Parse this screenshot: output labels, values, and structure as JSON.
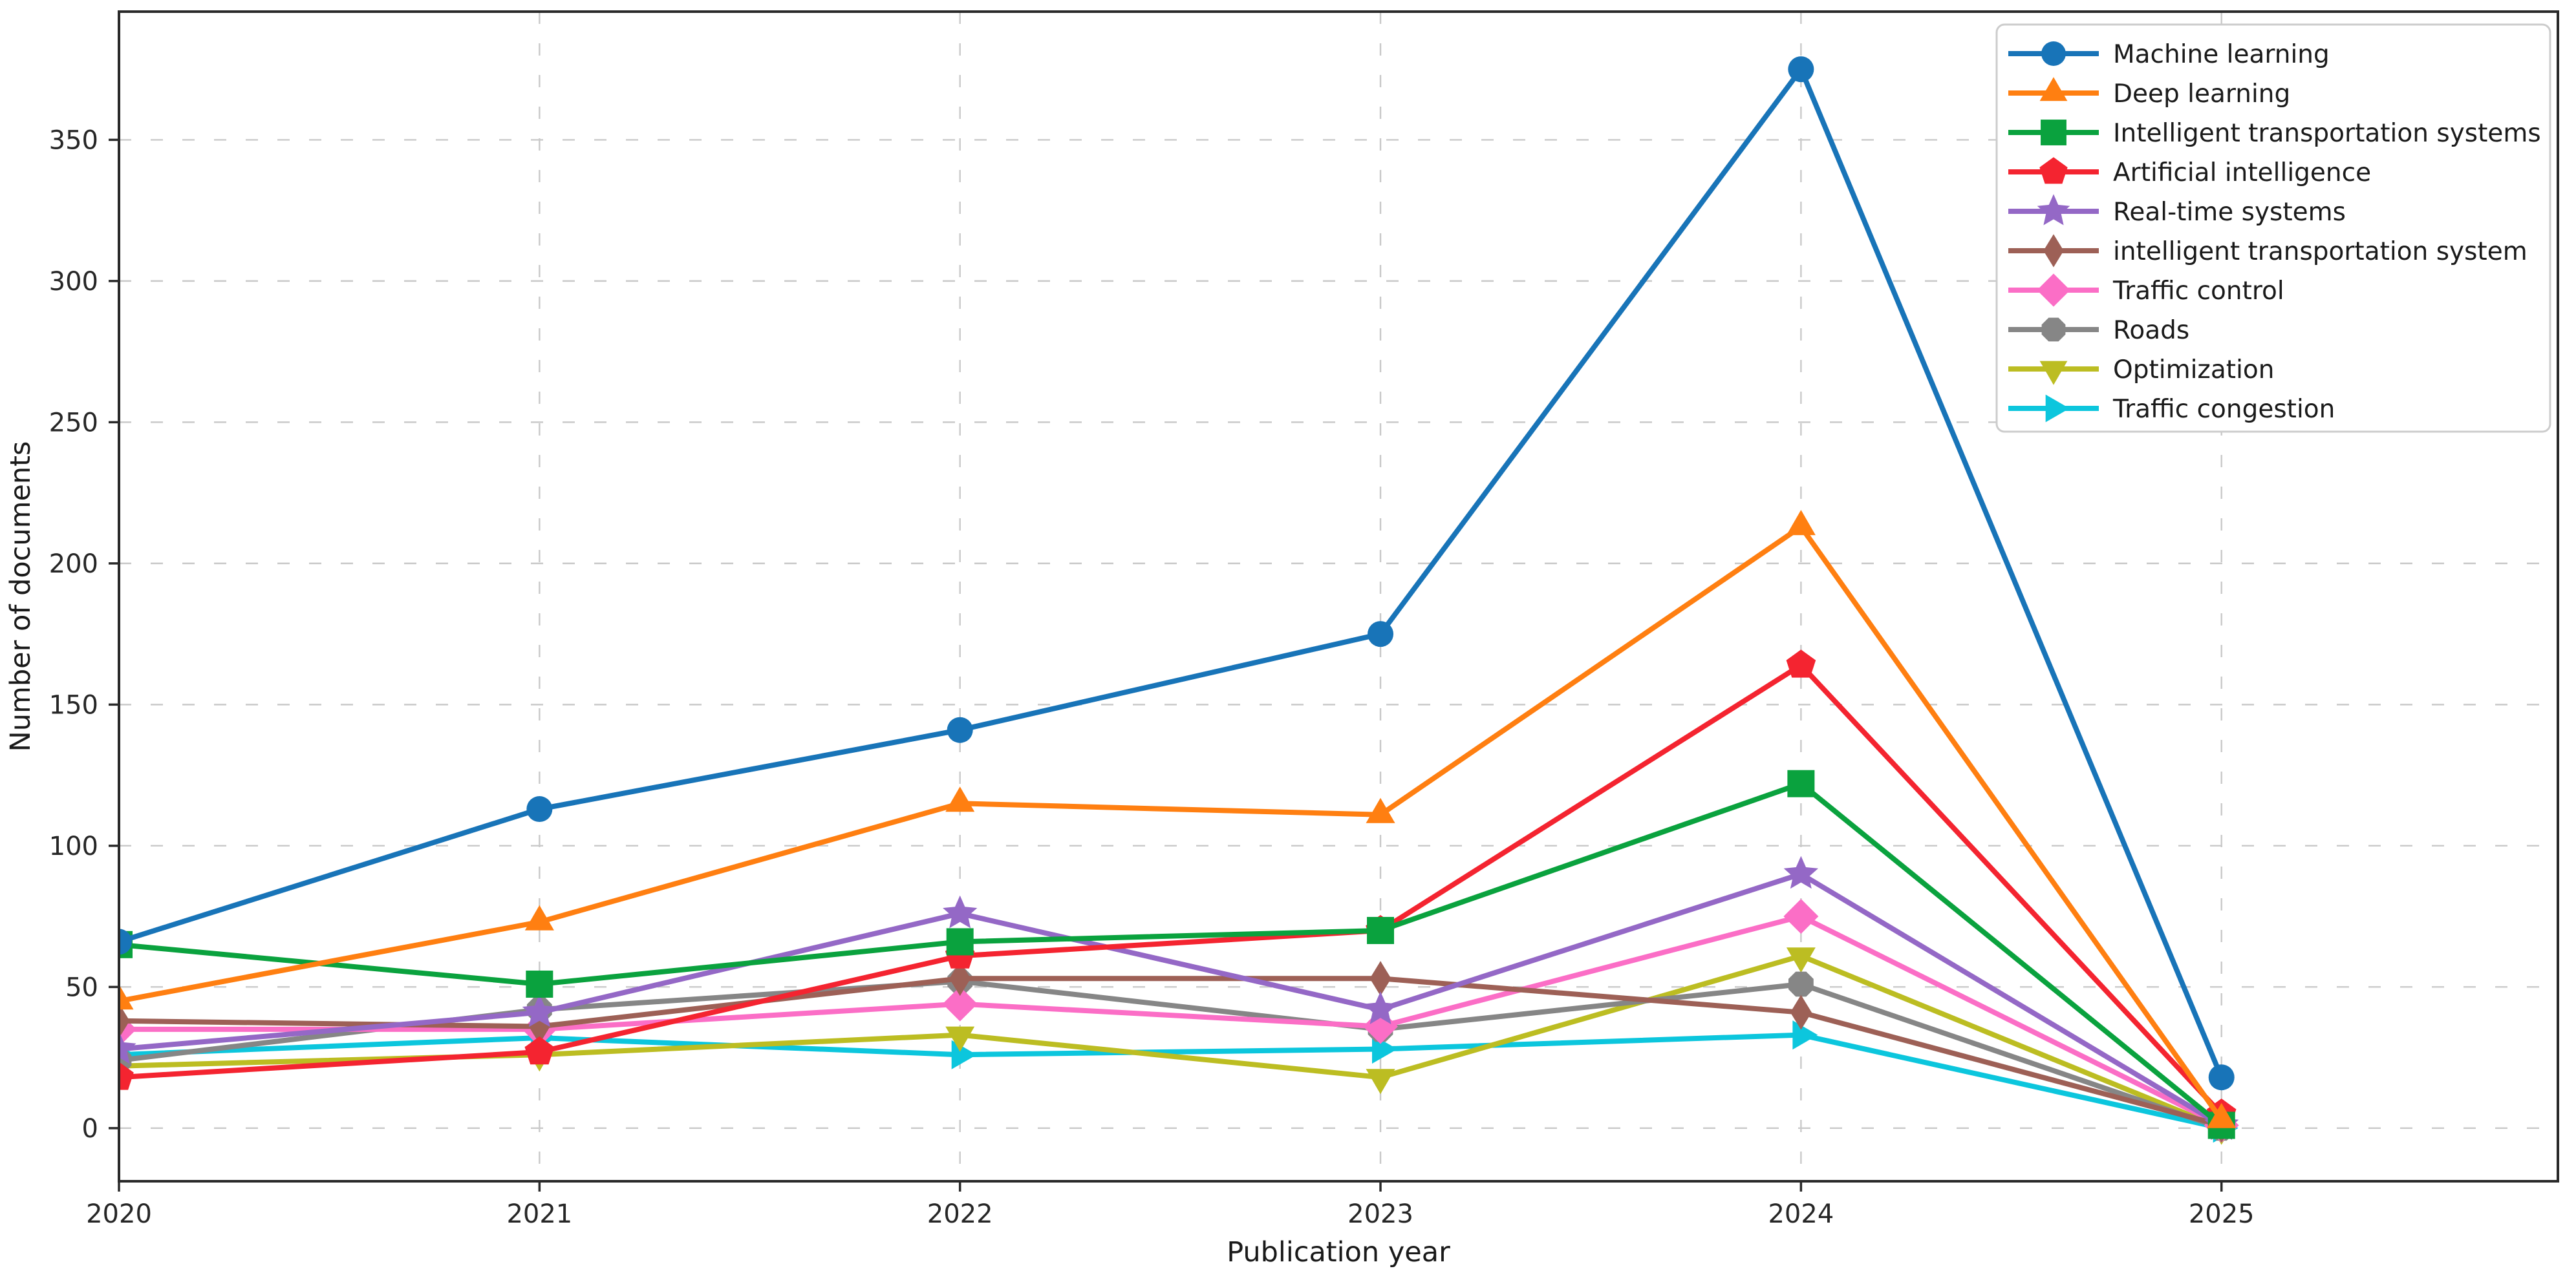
{
  "chart_data": {
    "type": "line",
    "x": [
      2020,
      2021,
      2022,
      2023,
      2024,
      2025
    ],
    "series": [
      {
        "name": "Machine learning",
        "color": "#1874b8",
        "marker": "circle",
        "values": [
          66,
          113,
          141,
          175,
          375,
          18
        ]
      },
      {
        "name": "Deep learning",
        "color": "#ff7f11",
        "marker": "triangle-up",
        "values": [
          45,
          73,
          115,
          111,
          213,
          3
        ]
      },
      {
        "name": "Intelligent transportation systems",
        "color": "#0aa23e",
        "marker": "square",
        "values": [
          65,
          51,
          66,
          70,
          122,
          1
        ]
      },
      {
        "name": "Artificial intelligence",
        "color": "#f42430",
        "marker": "pentagon",
        "values": [
          18,
          27,
          61,
          70,
          164,
          5
        ]
      },
      {
        "name": "Real-time systems",
        "color": "#9468c6",
        "marker": "star",
        "values": [
          28,
          41,
          76,
          42,
          90,
          1
        ]
      },
      {
        "name": "intelligent transportation system",
        "color": "#9d6056",
        "marker": "thin-diamond",
        "values": [
          38,
          36,
          53,
          53,
          41,
          1
        ]
      },
      {
        "name": "Traffic control",
        "color": "#fb6ec6",
        "marker": "diamond",
        "values": [
          35,
          35,
          44,
          36,
          75,
          1
        ]
      },
      {
        "name": "Roads",
        "color": "#868686",
        "marker": "octagon",
        "values": [
          24,
          42,
          52,
          35,
          51,
          0
        ]
      },
      {
        "name": "Optimization",
        "color": "#bcbd22",
        "marker": "triangle-down",
        "values": [
          22,
          26,
          33,
          18,
          61,
          0
        ]
      },
      {
        "name": "Traffic congestion",
        "color": "#0cc6dd",
        "marker": "triangle-right",
        "values": [
          26,
          32,
          26,
          28,
          33,
          0
        ]
      }
    ],
    "title": "",
    "xlabel": "Publication year",
    "ylabel": "Number of documents",
    "xticklabels": [
      "2020",
      "2021",
      "2022",
      "2023",
      "2024",
      "2025"
    ],
    "yticks": [
      0,
      50,
      100,
      150,
      200,
      250,
      300,
      350
    ],
    "ylim": [
      -18.8,
      395.4
    ],
    "xlim": [
      2020,
      2025.8
    ],
    "grid": "dashed",
    "grid_color": "#c9c9c9",
    "spine_color": "#2a2a2a",
    "legend_position": "upper right",
    "legend_border_color": "#cccccc",
    "background_color": "#ffffff"
  }
}
